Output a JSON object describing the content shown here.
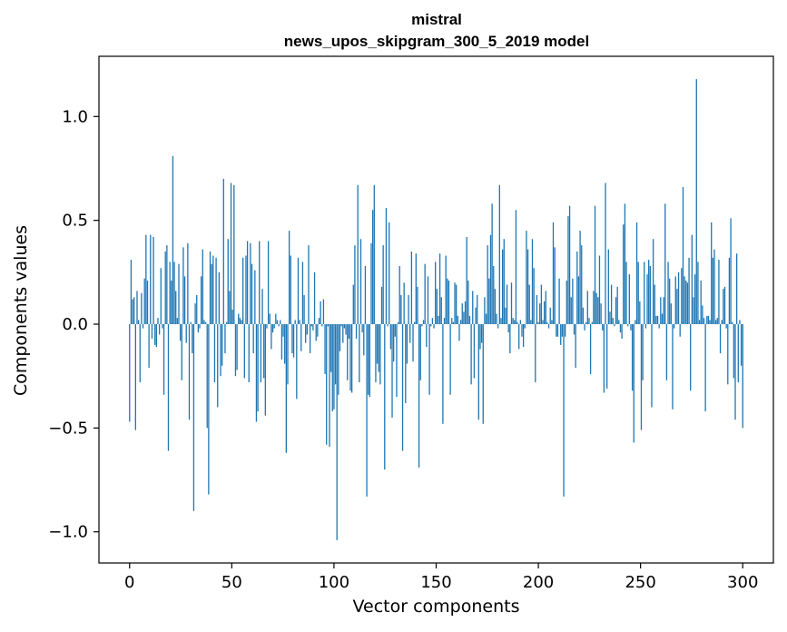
{
  "chart_data": {
    "type": "bar",
    "title_lines": [
      "mistral",
      "news_upos_skipgram_300_5_2019 model"
    ],
    "xlabel": "Vector components",
    "ylabel": "Components values",
    "xlim": [
      -15,
      315
    ],
    "ylim": [
      -1.15,
      1.29
    ],
    "xticks": [
      0,
      50,
      100,
      150,
      200,
      250,
      300
    ],
    "xtick_labels": [
      "0",
      "50",
      "100",
      "150",
      "200",
      "250",
      "300"
    ],
    "yticks": [
      -1.0,
      -0.5,
      0.0,
      0.5,
      1.0
    ],
    "ytick_labels": [
      "−1.0",
      "−0.5",
      "0.0",
      "0.5",
      "1.0"
    ],
    "bar_color": "#1f77b4",
    "grid": false,
    "values": [
      -0.47,
      0.31,
      0.12,
      0.13,
      -0.51,
      0.16,
      0.02,
      -0.28,
      0.15,
      -0.02,
      0.22,
      0.43,
      0.21,
      -0.21,
      0.43,
      -0.07,
      0.42,
      -0.1,
      -0.11,
      0.03,
      -0.05,
      0.27,
      -0.02,
      -0.34,
      0.35,
      0.38,
      -0.61,
      0.3,
      0.21,
      0.81,
      0.3,
      0.16,
      0.03,
      0.29,
      -0.08,
      -0.27,
      0.37,
      0.23,
      -0.09,
      0.39,
      -0.46,
      0.01,
      -0.14,
      -0.9,
      0.1,
      0.14,
      -0.04,
      -0.02,
      0.23,
      0.36,
      0.02,
      0.01,
      -0.5,
      -0.82,
      0.35,
      0.29,
      0.33,
      -0.28,
      0.32,
      -0.4,
      0.25,
      -0.25,
      -0.2,
      0.7,
      -0.14,
      0.01,
      0.41,
      0.16,
      0.68,
      0.07,
      0.67,
      -0.25,
      -0.22,
      0.05,
      0.03,
      0.02,
      0.32,
      -0.26,
      0.33,
      0.4,
      -0.28,
      0.39,
      0.29,
      -0.14,
      0.26,
      -0.47,
      -0.42,
      0.4,
      -0.28,
      0.17,
      -0.26,
      -0.44,
      -0.02,
      0.4,
      0.05,
      -0.12,
      -0.04,
      -0.02,
      0.05,
      0.02,
      -0.01,
      0.02,
      -0.17,
      -0.06,
      -0.19,
      -0.62,
      -0.29,
      0.45,
      0.33,
      -0.14,
      -0.16,
      0.02,
      -0.36,
      0.32,
      0.02,
      -0.13,
      0.3,
      0.14,
      -0.09,
      -0.05,
      0.38,
      -0.14,
      -0.01,
      -0.03,
      0.25,
      -0.08,
      -0.06,
      0.03,
      0.11,
      -0.01,
      0.12,
      -0.24,
      -0.58,
      -0.01,
      -0.59,
      -0.23,
      -0.42,
      -0.41,
      -0.29,
      -1.04,
      -0.34,
      -0.13,
      -0.01,
      -0.09,
      -0.02,
      -0.05,
      -0.27,
      -0.07,
      -0.32,
      -0.33,
      0.19,
      0.38,
      -0.07,
      0.67,
      -0.28,
      0.41,
      -0.04,
      -0.15,
      0.28,
      -0.83,
      -0.34,
      -0.35,
      0.39,
      0.55,
      0.67,
      -0.28,
      -0.19,
      -0.23,
      -0.29,
      0.18,
      0.38,
      -0.7,
      0.56,
      -0.01,
      0.49,
      -0.12,
      -0.45,
      -0.18,
      -0.06,
      -0.35,
      0.01,
      0.28,
      0.14,
      -0.61,
      0.2,
      -0.38,
      -0.19,
      0.14,
      -0.09,
      0.35,
      -0.18,
      0.01,
      0.34,
      0.18,
      -0.69,
      -0.27,
      -0.01,
      0.02,
      0.29,
      -0.11,
      0.23,
      -0.34,
      -0.01,
      0.03,
      -0.02,
      0.3,
      0.17,
      0.04,
      0.34,
      0.13,
      -0.48,
      0.03,
      0.33,
      0.22,
      0.21,
      -0.34,
      0.03,
      0.01,
      0.2,
      0.19,
      0.04,
      -0.08,
      0.02,
      0.1,
      0.06,
      0.11,
      0.42,
      0.21,
      0.04,
      -0.29,
      0.16,
      -0.26,
      0.08,
      0.14,
      -0.46,
      -0.12,
      -0.09,
      -0.48,
      0.13,
      0.05,
      0.38,
      0.22,
      0.43,
      0.58,
      0.28,
      0.17,
      0.05,
      -0.02,
      0.67,
      0.03,
      0.36,
      0.41,
      0.08,
      0.19,
      -0.04,
      -0.14,
      0.2,
      0.03,
      0.02,
      0.55,
      0.01,
      -0.12,
      0.02,
      -0.06,
      -0.11,
      -0.02,
      0.45,
      0.36,
      0.19,
      0.02,
      0.41,
      0.27,
      -0.28,
      0.14,
      0.01,
      0.1,
      0.19,
      0.02,
      0.11,
      0.16,
      0.01,
      -0.02,
      0.08,
      0.02,
      0.49,
      0.37,
      -0.06,
      -0.06,
      0.22,
      -0.1,
      -0.06,
      -0.83,
      -0.06,
      0.21,
      0.52,
      0.57,
      0.13,
      0.22,
      -0.05,
      -0.21,
      0.35,
      0.23,
      0.45,
      0.38,
      0.08,
      -0.03,
      0.01,
      0.16,
      0.03,
      -0.24,
      0.01,
      0.16,
      0.57,
      0.15,
      0.13,
      0.33,
      0.1,
      -0.03,
      -0.33,
      0.68,
      -0.31,
      0.36,
      0.06,
      0.19,
      0.03,
      -0.01,
      0.13,
      0.18,
      0.02,
      -0.04,
      -0.07,
      0.48,
      0.58,
      0.3,
      -0.01,
      0.24,
      -0.03,
      -0.32,
      -0.57,
      0.02,
      0.49,
      0.3,
      0.11,
      -0.51,
      -0.27,
      0.3,
      -0.02,
      0.24,
      0.31,
      0.28,
      -0.4,
      0.41,
      0.19,
      0.04,
      0.04,
      -0.02,
      0.13,
      0.05,
      0.13,
      0.58,
      -0.27,
      0.3,
      0.22,
      0.1,
      -0.41,
      -0.02,
      0.23,
      0.17,
      0.25,
      -0.06,
      0.27,
      0.66,
      0.23,
      0.21,
      0.2,
      0.32,
      -0.32,
      0.43,
      0.13,
      0.24,
      1.18,
      0.3,
      0.02,
      0.21,
      0.09,
      0.03,
      -0.42,
      0.04,
      0.04,
      0.02,
      0.49,
      0.32,
      0.36,
      0.02,
      0.03,
      0.31,
      -0.14,
      0.02,
      0.17,
      0.18,
      -0.02,
      -0.29,
      0.32,
      0.51,
      0.01,
      -0.26,
      -0.46,
      0.34,
      -0.28,
      0.02,
      -0.2,
      -0.5
    ]
  }
}
